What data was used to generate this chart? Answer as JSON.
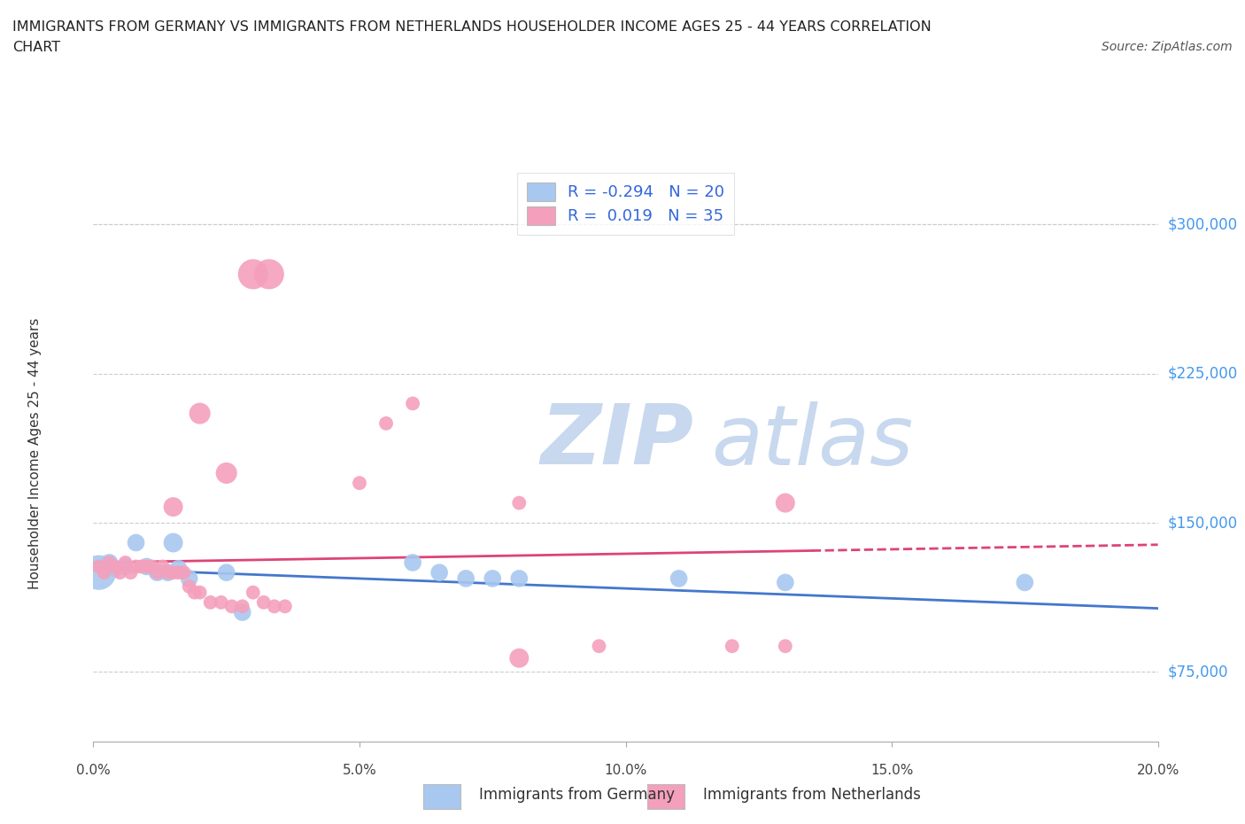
{
  "title_line1": "IMMIGRANTS FROM GERMANY VS IMMIGRANTS FROM NETHERLANDS HOUSEHOLDER INCOME AGES 25 - 44 YEARS CORRELATION",
  "title_line2": "CHART",
  "source": "Source: ZipAtlas.com",
  "ylabel": "Householder Income Ages 25 - 44 years",
  "xlim": [
    0.0,
    0.2
  ],
  "ylim": [
    40000,
    330000
  ],
  "yticks": [
    75000,
    150000,
    225000,
    300000
  ],
  "xticks": [
    0.0,
    0.05,
    0.1,
    0.15,
    0.2
  ],
  "xtick_labels": [
    "0.0%",
    "5.0%",
    "10.0%",
    "15.0%",
    "20.0%"
  ],
  "ytick_labels": [
    "$75,000",
    "$150,000",
    "$225,000",
    "$300,000"
  ],
  "germany_color": "#a8c8f0",
  "netherlands_color": "#f4a0bc",
  "germany_R": "-0.294",
  "germany_N": "20",
  "netherlands_R": "0.019",
  "netherlands_N": "35",
  "legend_label_germany": "Immigrants from Germany",
  "legend_label_netherlands": "Immigrants from Netherlands",
  "watermark_zip": "ZIP",
  "watermark_atlas": "atlas",
  "background_color": "#ffffff",
  "grid_color": "#cccccc",
  "trend_color_germany": "#4477cc",
  "trend_color_netherlands": "#dd4477",
  "germany_scatter_x": [
    0.001,
    0.003,
    0.004,
    0.006,
    0.008,
    0.01,
    0.012,
    0.014,
    0.016,
    0.018,
    0.025,
    0.028,
    0.06,
    0.065,
    0.07,
    0.075,
    0.08,
    0.11,
    0.13,
    0.175
  ],
  "germany_scatter_y": [
    125000,
    130000,
    127000,
    128000,
    140000,
    128000,
    125000,
    125000,
    127000,
    122000,
    125000,
    105000,
    130000,
    125000,
    122000,
    122000,
    122000,
    122000,
    120000,
    120000
  ],
  "netherlands_scatter_x": [
    0.001,
    0.002,
    0.003,
    0.004,
    0.005,
    0.006,
    0.007,
    0.008,
    0.009,
    0.01,
    0.011,
    0.012,
    0.013,
    0.014,
    0.015,
    0.016,
    0.017,
    0.018,
    0.019,
    0.02,
    0.022,
    0.024,
    0.026,
    0.028,
    0.03,
    0.032,
    0.034,
    0.036,
    0.05,
    0.055,
    0.06,
    0.08,
    0.095,
    0.12,
    0.13
  ],
  "netherlands_scatter_y": [
    128000,
    125000,
    130000,
    128000,
    125000,
    130000,
    125000,
    128000,
    128000,
    128000,
    128000,
    125000,
    128000,
    125000,
    125000,
    125000,
    125000,
    118000,
    115000,
    115000,
    110000,
    110000,
    108000,
    108000,
    115000,
    110000,
    108000,
    108000,
    170000,
    200000,
    210000,
    160000,
    88000,
    88000,
    88000
  ],
  "dot_size_germany": 200,
  "dot_size_netherlands": 130,
  "dot_size_germany_large": 800
}
